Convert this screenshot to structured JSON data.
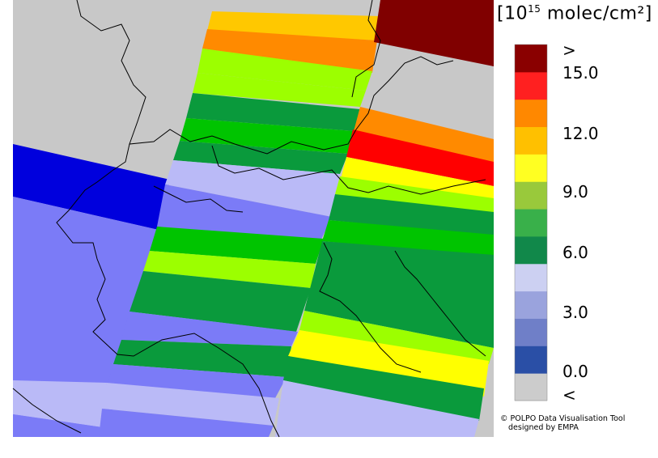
{
  "legend": {
    "units_prefix": "[10",
    "units_exponent": "15",
    "units_suffix": " molec/cm²]",
    "tick_labels": [
      ">",
      "15.0",
      "12.0",
      "9.0",
      "6.0",
      "3.0",
      "0.0",
      "<"
    ],
    "bins": [
      {
        "color": "#cccccc"
      },
      {
        "color": "#2a4fa6"
      },
      {
        "color": "#6f7fc8"
      },
      {
        "color": "#9aa3dd"
      },
      {
        "color": "#ccd0f2"
      },
      {
        "color": "#11884a"
      },
      {
        "color": "#39b04a"
      },
      {
        "color": "#99c93b"
      },
      {
        "color": "#ffff22"
      },
      {
        "color": "#ffc000"
      },
      {
        "color": "#ff8800"
      },
      {
        "color": "#ff2020"
      },
      {
        "color": "#8a0000"
      }
    ]
  },
  "credit": {
    "line1": "© POLPO Data Visualisation Tool",
    "line2": "designed by EMPA"
  },
  "palette": {
    "gray": "#c8c8c8",
    "blue_dark": "#0000dd",
    "blue_mid": "#7b7bf7",
    "lavender": "#babaf7",
    "green": "#0a9a3c",
    "green_bright": "#00c400",
    "yellow_green": "#9cff00",
    "yellow": "#ffff00",
    "amber": "#ffc800",
    "orange": "#ff8a00",
    "red": "#ff0000",
    "dark_red": "#800000"
  }
}
